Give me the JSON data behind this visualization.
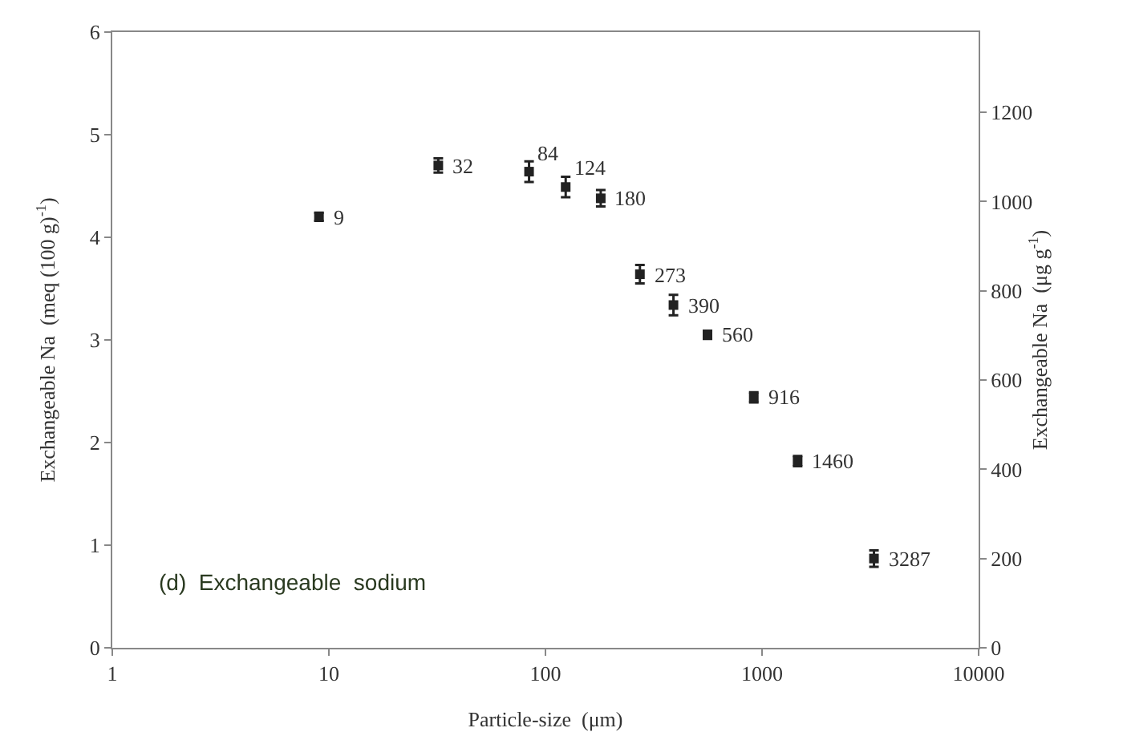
{
  "chart_data": {
    "type": "scatter",
    "xlabel": "Particle-size  (μm)",
    "ylabel": "Exchangeable Na  (meq (100 g)$^{-1}$)",
    "y2label": "Exchangeable Na  (μg g$^{-1}$)",
    "x": [
      9,
      32,
      84,
      124,
      180,
      273,
      390,
      560,
      916,
      1460,
      3287
    ],
    "series": [
      {
        "color": "#222222",
        "values": [
          4.2,
          4.7,
          4.64,
          4.49,
          4.38,
          3.64,
          3.34,
          3.05,
          2.44,
          1.82,
          0.87
        ],
        "errors": [
          0.04,
          0.07,
          0.1,
          0.1,
          0.08,
          0.09,
          0.1,
          0.04,
          0.05,
          0.05,
          0.08
        ]
      }
    ],
    "log": "x",
    "xlim": [
      1,
      10000
    ],
    "xticks": [
      1,
      10,
      100,
      1000,
      10000
    ],
    "ylim": [
      0,
      6
    ],
    "yticks": [
      0,
      1,
      2,
      3,
      4,
      5,
      6
    ],
    "y2lim": [
      0,
      1380
    ],
    "y2ticks": [
      0,
      200,
      400,
      600,
      800,
      1000,
      1200
    ],
    "marker": "square",
    "grid": false,
    "annotations": [
      {
        "text": "9",
        "x": 9,
        "y": 4.2
      },
      {
        "text": "32",
        "x": 32,
        "y": 4.7
      },
      {
        "text": "84",
        "x": 84,
        "y": 4.64
      },
      {
        "text": "124",
        "x": 124,
        "y": 4.49
      },
      {
        "text": "180",
        "x": 180,
        "y": 4.38
      },
      {
        "text": "273",
        "x": 273,
        "y": 3.64
      },
      {
        "text": "390",
        "x": 390,
        "y": 3.34
      },
      {
        "text": "560",
        "x": 560,
        "y": 3.05
      },
      {
        "text": "916",
        "x": 916,
        "y": 2.44
      },
      {
        "text": "1460",
        "x": 1460,
        "y": 1.82
      },
      {
        "text": "3287",
        "x": 3287,
        "y": 0.87
      },
      "(d)  Exchangeable  sodium"
    ]
  }
}
